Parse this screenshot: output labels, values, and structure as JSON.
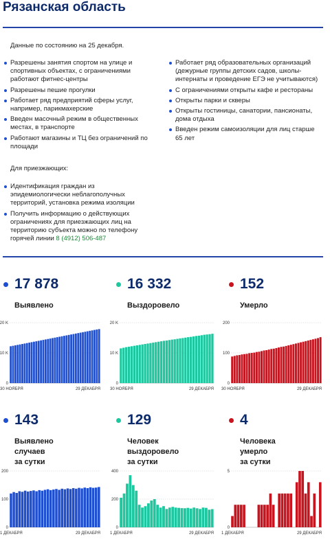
{
  "title": "Рязанская область",
  "date_line": "Данные по состоянию на 25 декабря.",
  "left_items": [
    "Разрешены занятия спортом на улице и спортивных объектах, с ограничениями работают фитнес-центры",
    "Разрешены пешие прогулки",
    "Работает ряд предприятий сферы услуг, например, парикмахерские",
    "Введен масочный режим в общественных местах, в транспорте",
    "Работают магазины и ТЦ без ограничений по площади"
  ],
  "right_items": [
    "Работает ряд образовательных организаций (дежурные группы детских садов, школы-интернаты и проведение ЕГЭ не учитываются)",
    "С ограничениями открыты кафе и рестораны",
    "Открыты парки и скверы",
    "Открыты гостиницы, санатории, пансионаты, дома отдыха",
    "Введен режим самоизоляции для лиц старше 65 лет"
  ],
  "visitors_heading": "Для приезжающих:",
  "visitor_items": [
    "Идентификация граждан из эпидемиологически неблагополучных территорий, установка режима изоляции",
    "Получить информацию о действующих ограничениях для приезжающих лиц на территорию субъекта можно по телефону горячей линии"
  ],
  "hotline_phone": "8 (4912) 506-487",
  "colors": {
    "blue": "#1f4fd1",
    "green": "#1fc7a0",
    "red": "#c8141e",
    "title": "#0d2b6b"
  },
  "stats": [
    {
      "value": "17 878",
      "label": "Выявлено",
      "color": "#1f4fd1"
    },
    {
      "value": "16 332",
      "label": "Выздоровело",
      "color": "#1fc7a0"
    },
    {
      "value": "152",
      "label": "Умерло",
      "color": "#c8141e"
    },
    {
      "value": "143",
      "label": "Выявлено случаев\nза сутки",
      "color": "#1f4fd1"
    },
    {
      "value": "129",
      "label": "Человек выздоровело\nза сутки",
      "color": "#1fc7a0"
    },
    {
      "value": "4",
      "label": "Человека умерло\nза сутки",
      "color": "#c8141e"
    }
  ],
  "chart_data": [
    {
      "type": "bar",
      "title": "Выявлено",
      "color": "#1f4fd1",
      "ylim": [
        0,
        20000
      ],
      "yticks": [
        0,
        10000,
        20000
      ],
      "ytick_labels": [
        "0",
        "10 K",
        "20 K"
      ],
      "x_start": "30 НОЯБРЯ",
      "x_end": "29 ДЕКАБРЯ",
      "values": [
        12200,
        12350,
        12500,
        12650,
        12800,
        12950,
        13100,
        13250,
        13400,
        13550,
        13700,
        13850,
        14000,
        14150,
        14300,
        14450,
        14600,
        14750,
        14900,
        15050,
        15200,
        15350,
        15500,
        15650,
        15800,
        15950,
        16100,
        16250,
        16400,
        16550,
        16700,
        16850,
        17000,
        17150,
        17300,
        17450,
        17600,
        17750,
        17878
      ]
    },
    {
      "type": "bar",
      "title": "Выздоровело",
      "color": "#1fc7a0",
      "ylim": [
        0,
        20000
      ],
      "yticks": [
        0,
        10000,
        20000
      ],
      "ytick_labels": [
        "0",
        "10 K",
        "20 K"
      ],
      "x_start": "30 НОЯБРЯ",
      "x_end": "29 ДЕКАБРЯ",
      "values": [
        11500,
        11700,
        11900,
        12050,
        12200,
        12350,
        12500,
        12650,
        12800,
        12950,
        13100,
        13250,
        13400,
        13550,
        13700,
        13850,
        14000,
        14100,
        14250,
        14400,
        14500,
        14650,
        14800,
        14900,
        15050,
        15200,
        15300,
        15450,
        15600,
        15700,
        15850,
        16000,
        16100,
        16200,
        16332
      ]
    },
    {
      "type": "bar",
      "title": "Умерло",
      "color": "#c8141e",
      "ylim": [
        0,
        200
      ],
      "yticks": [
        0,
        100,
        200
      ],
      "ytick_labels": [
        "0",
        "100",
        "200"
      ],
      "x_start": "30 НОЯБРЯ",
      "x_end": "29 ДЕКАБРЯ",
      "values": [
        88,
        90,
        92,
        93,
        95,
        96,
        97,
        99,
        100,
        101,
        103,
        104,
        106,
        108,
        109,
        111,
        113,
        114,
        116,
        118,
        120,
        121,
        123,
        125,
        127,
        129,
        131,
        133,
        135,
        137,
        139,
        141,
        143,
        145,
        147,
        149,
        152
      ]
    },
    {
      "type": "bar",
      "title": "Выявлено случаев за сутки",
      "color": "#1f4fd1",
      "ylim": [
        0,
        200
      ],
      "yticks": [
        0,
        100,
        200
      ],
      "ytick_labels": [
        "0",
        "100",
        "200"
      ],
      "x_start": "1 ДЕКАБРЯ",
      "x_end": "29 ДЕКАБРЯ",
      "values": [
        120,
        125,
        122,
        128,
        126,
        130,
        127,
        129,
        131,
        128,
        132,
        130,
        133,
        135,
        132,
        134,
        136,
        133,
        137,
        135,
        138,
        136,
        139,
        137,
        140,
        138,
        141,
        139,
        142,
        140,
        141,
        143
      ]
    },
    {
      "type": "bar",
      "title": "Человек выздоровело за сутки",
      "color": "#1fc7a0",
      "ylim": [
        0,
        400
      ],
      "yticks": [
        0,
        200,
        400
      ],
      "ytick_labels": [
        "0",
        "200",
        "400"
      ],
      "x_start": "1 ДЕКАБРЯ",
      "x_end": "29 ДЕКАБРЯ",
      "values": [
        210,
        240,
        310,
        370,
        300,
        260,
        160,
        140,
        150,
        170,
        190,
        200,
        160,
        140,
        150,
        130,
        140,
        145,
        140,
        138,
        136,
        135,
        138,
        133,
        140,
        135,
        130,
        140,
        138,
        125,
        129
      ]
    },
    {
      "type": "bar",
      "title": "Человека умерло за сутки",
      "color": "#c8141e",
      "ylim": [
        0,
        5
      ],
      "yticks": [
        0,
        5
      ],
      "ytick_labels": [
        "0",
        "5"
      ],
      "x_start": "1 ДЕКАБРЯ",
      "x_end": "29 ДЕКАБРЯ",
      "values": [
        1,
        2,
        2,
        2,
        2,
        0,
        0,
        0,
        0,
        2,
        2,
        2,
        2,
        3,
        2,
        0,
        3,
        3,
        3,
        3,
        3,
        0,
        4,
        5,
        5,
        3,
        4,
        1,
        3,
        0,
        4
      ]
    }
  ]
}
